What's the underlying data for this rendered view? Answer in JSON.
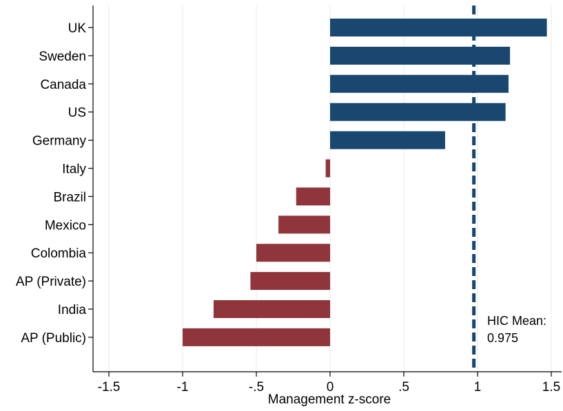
{
  "chart_data": {
    "type": "bar",
    "orientation": "horizontal",
    "categories": [
      "UK",
      "Sweden",
      "Canada",
      "US",
      "Germany",
      "Italy",
      "Brazil",
      "Mexico",
      "Colombia",
      "AP (Private)",
      "India",
      "AP (Public)"
    ],
    "values": [
      1.47,
      1.22,
      1.21,
      1.19,
      0.78,
      -0.03,
      -0.23,
      -0.35,
      -0.5,
      -0.54,
      -0.79,
      -1.0
    ],
    "xlabel": "Management z-score",
    "ylabel": "",
    "xlim": [
      -1.5,
      1.5
    ],
    "xticks": [
      -1.5,
      -1,
      -0.5,
      0,
      0.5,
      1,
      1.5
    ],
    "xtick_labels": [
      "-1.5",
      "-1",
      "-.5",
      "0",
      ".5",
      "1",
      "1.5"
    ],
    "grid": "vertical",
    "colors": {
      "positive": "#1a476f",
      "negative": "#90353b",
      "reference_line": "#1a476f",
      "annotation_text": "#1a476f",
      "grid": "#eaeaea"
    },
    "reference_line": {
      "x": 0.975,
      "style": "dashed"
    },
    "annotation": {
      "lines": [
        "HIC Mean:",
        "0.975"
      ]
    }
  }
}
